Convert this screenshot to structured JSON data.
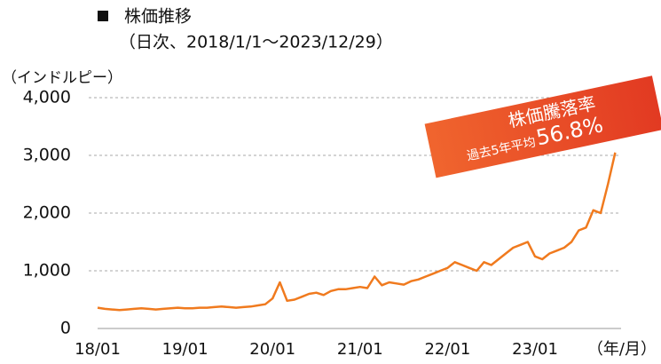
{
  "chart_data": {
    "type": "line",
    "title": "株価推移",
    "subtitle": "（日次、2018/1/1～2023/12/29）",
    "y_label": "（インドルピー）",
    "x_label": "（年/月）",
    "annotations": [
      "株価騰落率",
      "過去5年平均",
      "56.8%"
    ],
    "categories": [
      "18/01",
      null,
      null,
      null,
      null,
      null,
      null,
      null,
      null,
      null,
      null,
      null,
      "19/01",
      null,
      null,
      null,
      null,
      null,
      null,
      null,
      null,
      null,
      null,
      null,
      "20/01",
      null,
      null,
      null,
      null,
      null,
      null,
      null,
      null,
      null,
      null,
      null,
      "21/01",
      null,
      null,
      null,
      null,
      null,
      null,
      null,
      null,
      null,
      null,
      null,
      "22/01",
      null,
      null,
      null,
      null,
      null,
      null,
      null,
      null,
      null,
      null,
      null,
      "23/01",
      null,
      null,
      null,
      null,
      null,
      null,
      null,
      null,
      null,
      null,
      null
    ],
    "series": [
      {
        "name": "株価",
        "color": "#f07a1e",
        "values": [
          360,
          340,
          330,
          320,
          330,
          340,
          350,
          340,
          330,
          340,
          350,
          360,
          350,
          350,
          360,
          360,
          370,
          380,
          370,
          360,
          370,
          380,
          400,
          420,
          520,
          800,
          480,
          500,
          550,
          600,
          620,
          580,
          650,
          680,
          680,
          700,
          720,
          700,
          900,
          750,
          800,
          780,
          760,
          820,
          850,
          900,
          950,
          1000,
          1050,
          1150,
          1100,
          1050,
          1000,
          1150,
          1100,
          1200,
          1300,
          1400,
          1450,
          1500,
          1250,
          1200,
          1300,
          1350,
          1400,
          1500,
          1700,
          1750,
          2050,
          2000,
          2500,
          3050
        ]
      }
    ],
    "ylim": [
      0,
      4000
    ],
    "yticks": [
      0,
      {
        "value": 1000,
        "label": "1,000"
      },
      {
        "value": 2000,
        "label": "2,000"
      },
      {
        "value": 3000,
        "label": "3,000"
      },
      {
        "value": 4000,
        "label": "4,000"
      }
    ],
    "grid": true
  }
}
